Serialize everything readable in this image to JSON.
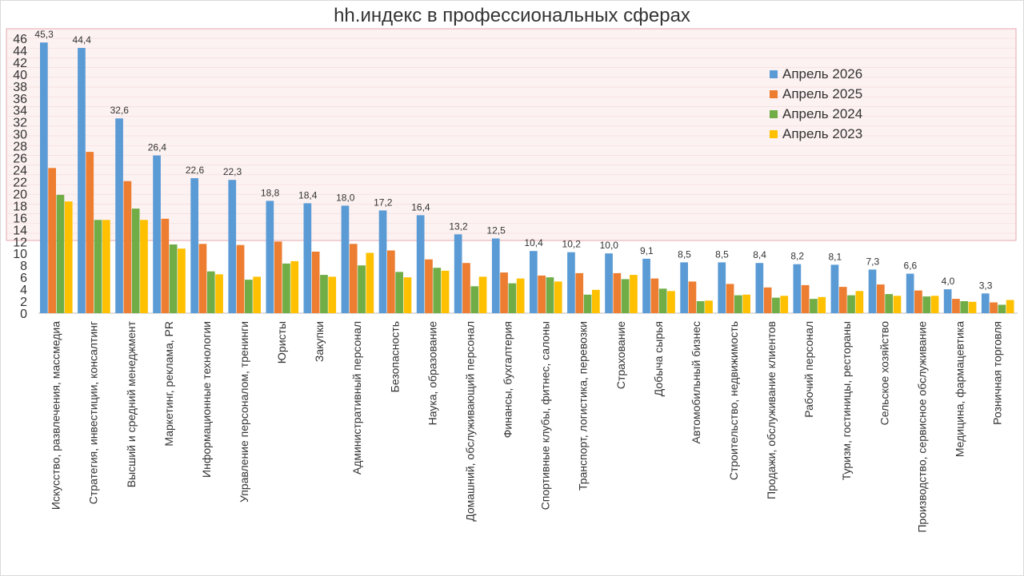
{
  "chart_data": {
    "type": "bar",
    "title": "hh.индекс в профессиональных сферах",
    "xlabel": "",
    "ylabel": "",
    "ylim": [
      0,
      46
    ],
    "yticks": [
      0,
      2,
      4,
      6,
      8,
      10,
      12,
      14,
      16,
      18,
      20,
      22,
      24,
      26,
      28,
      30,
      32,
      34,
      36,
      38,
      40,
      42,
      44,
      46
    ],
    "grid": false,
    "legend_position": "top-right",
    "categories": [
      "Искусство, развлечения, массмедиа",
      "Стратегия, инвестиции, консалтинг",
      "Высший и средний менеджмент",
      "Маркетинг, реклама, PR",
      "Информационные технологии",
      "Управление персоналом, тренинги",
      "Юристы",
      "Закупки",
      "Административный персонал",
      "Безопасность",
      "Наука, образование",
      "Домашний, обслуживающий персонал",
      "Финансы, бухгалтерия",
      "Спортивные клубы, фитнес, салоны",
      "Транспорт, логистика, перевозки",
      "Страхование",
      "Добыча сырья",
      "Автомобильный бизнес",
      "Строительство, недвижимость",
      "Продажи, обслуживание клиентов",
      "Рабочий персонал",
      "Туризм, гостиницы, рестораны",
      "Сельское хозяйство",
      "Производство, сервисное обслуживание",
      "Медицина, фармацевтика",
      "Розничная торговля"
    ],
    "series": [
      {
        "name": "Апрель 2026",
        "color": "#5B9BD5",
        "values": [
          45.3,
          44.4,
          32.6,
          26.4,
          22.6,
          22.3,
          18.8,
          18.4,
          18.0,
          17.2,
          16.4,
          13.2,
          12.5,
          10.4,
          10.2,
          10.0,
          9.1,
          8.5,
          8.5,
          8.4,
          8.2,
          8.1,
          7.3,
          6.6,
          4.0,
          3.3
        ],
        "data_labels": [
          "45,3",
          "44,4",
          "32,6",
          "26,4",
          "22,6",
          "22,3",
          "18,8",
          "18,4",
          "18,0",
          "17,2",
          "16,4",
          "13,2",
          "12,5",
          "10,4",
          "10,2",
          "10,0",
          "9,1",
          "8,5",
          "8,5",
          "8,4",
          "8,2",
          "8,1",
          "7,3",
          "6,6",
          "4,0",
          "3,3"
        ]
      },
      {
        "name": "Апрель 2025",
        "color": "#ED7D31",
        "values": [
          24.3,
          27.0,
          22.1,
          15.8,
          11.6,
          11.4,
          12.0,
          10.3,
          11.6,
          10.5,
          9.0,
          8.4,
          6.8,
          6.3,
          6.7,
          6.7,
          5.8,
          5.3,
          4.9,
          4.3,
          4.7,
          4.4,
          4.8,
          3.8,
          2.4,
          1.8
        ]
      },
      {
        "name": "Апрель 2024",
        "color": "#70AD47",
        "values": [
          19.8,
          15.6,
          17.5,
          11.5,
          7.0,
          5.6,
          8.3,
          6.4,
          8.0,
          6.9,
          7.6,
          4.5,
          5.0,
          6.0,
          3.1,
          5.7,
          4.1,
          2.0,
          3.0,
          2.6,
          2.4,
          3.0,
          3.2,
          2.8,
          2.0,
          1.4
        ]
      },
      {
        "name": "Апрель 2023",
        "color": "#FFC000",
        "values": [
          18.7,
          15.6,
          15.6,
          10.8,
          6.5,
          6.1,
          8.7,
          6.1,
          10.1,
          6.0,
          7.1,
          6.1,
          5.8,
          5.3,
          3.9,
          6.4,
          3.7,
          2.1,
          3.1,
          2.9,
          2.7,
          3.7,
          2.9,
          2.9,
          1.9,
          2.2
        ]
      }
    ]
  }
}
